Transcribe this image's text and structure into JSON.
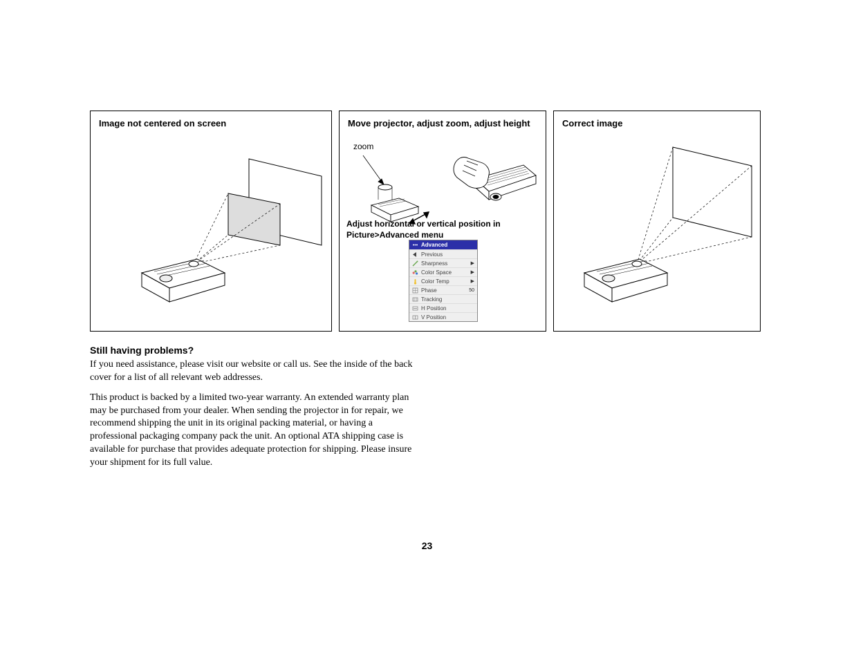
{
  "panels": {
    "left": {
      "title": "Image not centered on screen"
    },
    "mid": {
      "title": "Move projector, adjust zoom, adjust height",
      "zoom_label": "zoom",
      "subtitle_line1": "Adjust horizontal or vertical position in",
      "subtitle_line2": "Picture>Advanced menu"
    },
    "right": {
      "title": "Correct image"
    }
  },
  "advanced_menu": {
    "header": "Advanced",
    "items": [
      {
        "label": "Previous",
        "icon_color": "#444444",
        "icon": "back"
      },
      {
        "label": "Sharpness",
        "icon_color": "#6aa84f",
        "icon": "wand",
        "arrow": true
      },
      {
        "label": "Color Space",
        "icon_color": "#e06666",
        "icon": "palette",
        "arrow": true
      },
      {
        "label": "Color Temp",
        "icon_color": "#f1c232",
        "icon": "temp",
        "arrow": true
      },
      {
        "label": "Phase",
        "icon_color": "#888888",
        "icon": "grid",
        "value": "50"
      },
      {
        "label": "Tracking",
        "icon_color": "#888888",
        "icon": "track"
      },
      {
        "label": "H Position",
        "icon_color": "#888888",
        "icon": "hpos"
      },
      {
        "label": "V Position",
        "icon_color": "#888888",
        "icon": "vpos"
      }
    ],
    "header_bg": "#2b2fa8",
    "body_bg": "#efefef"
  },
  "below": {
    "heading": "Still having problems?",
    "p1": "If you need assistance, please visit our website or call us. See the inside of the back cover for a list of all relevant web addresses.",
    "p2": "This product is backed by a limited two-year warranty. An extended warranty plan may be purchased from your dealer. When sending the projector in for repair, we recommend shipping the unit in its original packing material, or having a professional packaging company pack the unit. An optional ATA shipping case is available for purchase that provides adequate protection for shipping. Please insure your shipment for its full value."
  },
  "page_number": "23",
  "colors": {
    "text": "#000000",
    "menu_header_bg": "#2b2fa8",
    "menu_bg": "#efefef"
  }
}
